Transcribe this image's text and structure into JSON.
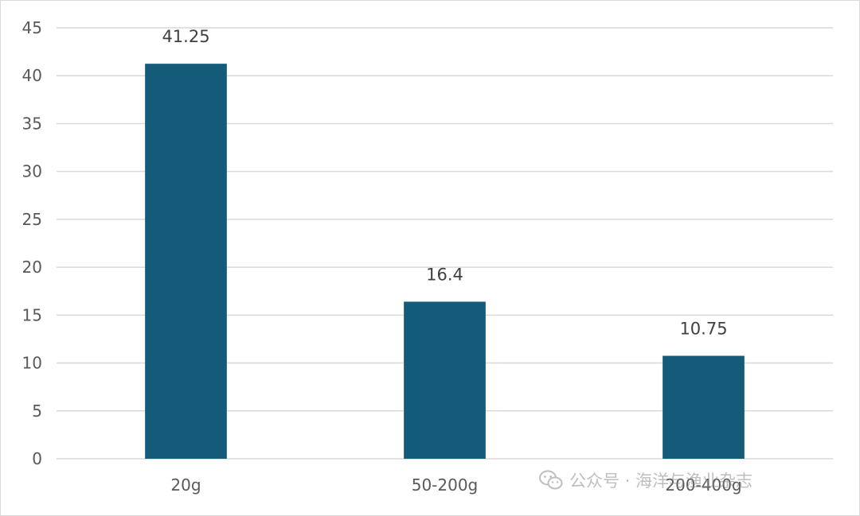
{
  "chart_data": {
    "type": "bar",
    "categories": [
      "20g",
      "50-200g",
      "200-400g"
    ],
    "values": [
      41.25,
      16.4,
      10.75
    ],
    "data_labels": [
      "41.25",
      "16.4",
      "10.75"
    ],
    "title": "",
    "xlabel": "",
    "ylabel": "",
    "ylim": [
      0,
      45
    ],
    "yticks": [
      0,
      5,
      10,
      15,
      20,
      25,
      30,
      35,
      40,
      45
    ],
    "grid": true,
    "legend": "none",
    "bar_color": "#145a79",
    "grid_color": "#d9d9d9",
    "axis_color": "#d9d9d9"
  },
  "watermark": {
    "text": "公众号 · 海洋与渔业杂志",
    "icon": "wechat-icon"
  }
}
